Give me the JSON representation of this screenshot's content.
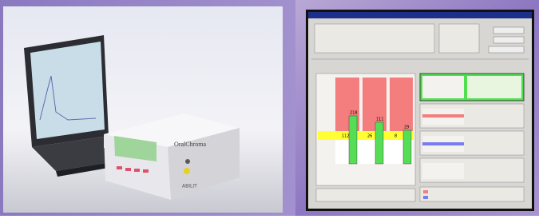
{
  "device": {
    "brand": "OralChroma",
    "maker": "ABILIT"
  },
  "screenshot": {
    "bar_labels": [
      "112",
      "218",
      "26",
      "111",
      "8",
      "29"
    ]
  }
}
